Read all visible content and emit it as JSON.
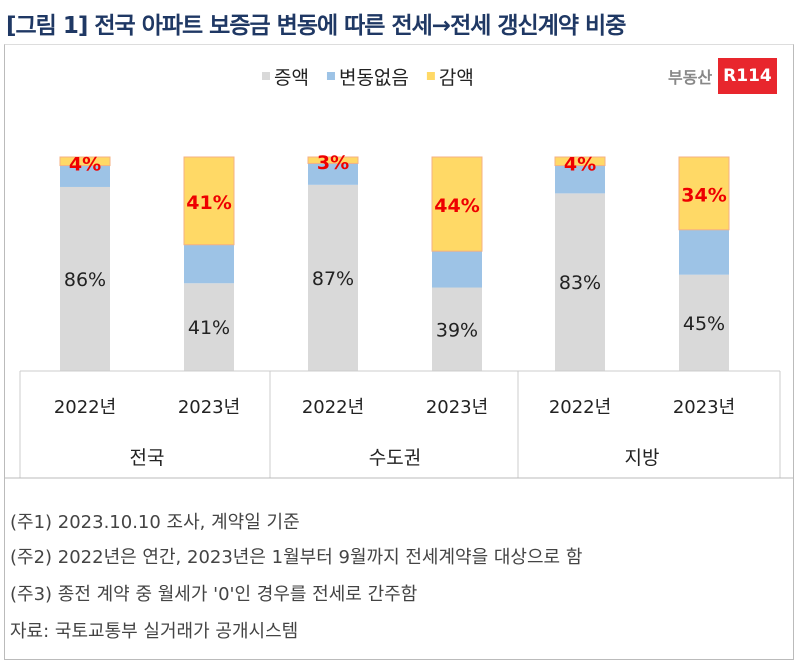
{
  "title": "[그림 1] 전국 아파트 보증금 변동에 따른 전세→전세 갱신계약 비중",
  "logo": "부동산R114",
  "chart_data": {
    "type": "bar",
    "stacked": true,
    "groups": [
      "전국",
      "수도권",
      "지방"
    ],
    "categories": [
      "2022년",
      "2023년",
      "2022년",
      "2023년",
      "2022년",
      "2023년"
    ],
    "series": [
      {
        "name": "증액",
        "color": "#d9d9d9",
        "values": [
          86,
          41,
          87,
          39,
          83,
          45
        ],
        "labels": [
          "86%",
          "41%",
          "87%",
          "39%",
          "83%",
          "45%"
        ]
      },
      {
        "name": "변동없음",
        "color": "#9dc3e6",
        "values": [
          10,
          18,
          10,
          17,
          13,
          21
        ]
      },
      {
        "name": "감액",
        "color": "#ffd966",
        "values": [
          4,
          41,
          3,
          44,
          4,
          34
        ],
        "labels": [
          "4%",
          "41%",
          "3%",
          "44%",
          "4%",
          "34%"
        ]
      }
    ],
    "ylim": [
      0,
      100
    ],
    "legend": "top",
    "grid": false
  },
  "notes": [
    "(주1) 2023.10.10 조사, 계약일 기준",
    "(주2) 2022년은 연간, 2023년은 1월부터 9월까지 전세계약을 대상으로 함",
    "(주3) 종전 계약 중 월세가 '0'인 경우를 전세로 간주함",
    "자료: 국토교통부 실거래가 공개시스템"
  ]
}
